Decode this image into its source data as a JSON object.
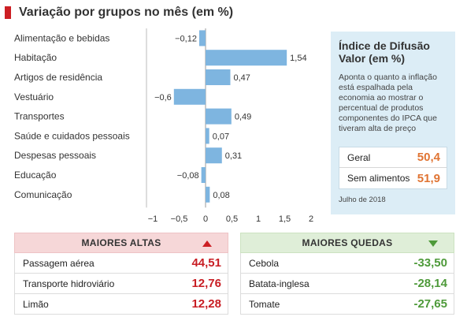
{
  "header": {
    "title": "Variação por grupos no mês (em %)"
  },
  "chart_data": {
    "type": "bar",
    "orientation": "horizontal",
    "title": "Variação por grupos no mês (em %)",
    "categories": [
      "Alimentação e bebidas",
      "Habitação",
      "Artigos de residência",
      "Vestuário",
      "Transportes",
      "Saúde e cuidados pessoais",
      "Despesas pessoais",
      "Educação",
      "Comunicação"
    ],
    "values": [
      -0.12,
      1.54,
      0.47,
      -0.6,
      0.49,
      0.07,
      0.31,
      -0.08,
      0.08
    ],
    "value_labels": [
      "−0,12",
      "1,54",
      "0,47",
      "−0,6",
      "0,49",
      "0,07",
      "0,31",
      "−0,08",
      "0,08"
    ],
    "xlim": [
      -1,
      2
    ],
    "xticks": [
      -1,
      -0.5,
      0,
      0.5,
      1,
      1.5,
      2
    ],
    "xtick_labels": [
      "−1",
      "−0,5",
      "0",
      "0,5",
      "1",
      "1,5",
      "2"
    ],
    "bar_color": "#7eb5e0",
    "grid": false
  },
  "info": {
    "title": "Índice de Difusão Valor (em %)",
    "description": "Aponta o quanto a inflação está espalhada pela economia ao mostrar o percentual de produtos componentes do IPCA que tiveram alta de preço",
    "rows": [
      {
        "label": "Geral",
        "value": "50,4"
      },
      {
        "label": "Sem alimentos",
        "value": "51,9"
      }
    ],
    "footnote": "Julho de 2018"
  },
  "highs": {
    "title": "MAIORES ALTAS",
    "items": [
      {
        "label": "Passagem aérea",
        "value": "44,51"
      },
      {
        "label": "Transporte hidroviário",
        "value": "12,76"
      },
      {
        "label": "Limão",
        "value": "12,28"
      }
    ]
  },
  "lows": {
    "title": "MAIORES QUEDAS",
    "items": [
      {
        "label": "Cebola",
        "value": "-33,50"
      },
      {
        "label": "Batata-inglesa",
        "value": "-28,14"
      },
      {
        "label": "Tomate",
        "value": "-27,65"
      }
    ]
  }
}
